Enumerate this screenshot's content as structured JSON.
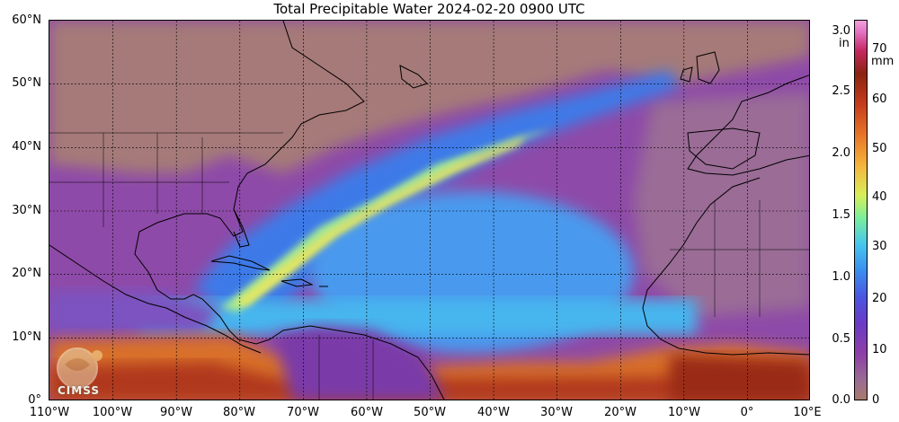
{
  "title": "Total Precipitable Water  2024-02-20 0900 UTC",
  "y_labels": [
    "60°N",
    "50°N",
    "40°N",
    "30°N",
    "20°N",
    "10°N",
    "0°"
  ],
  "x_labels": [
    "110°W",
    "100°W",
    "90°W",
    "80°W",
    "70°W",
    "60°W",
    "50°W",
    "40°W",
    "30°W",
    "20°W",
    "10°W",
    "0°",
    "10°E"
  ],
  "colorbar": {
    "inches": [
      "3.0",
      "2.5",
      "2.0",
      "1.5",
      "1.0",
      "0.5",
      "0.0"
    ],
    "inch_unit": "in",
    "mm": [
      "70",
      "60",
      "50",
      "40",
      "30",
      "20",
      "10",
      "0"
    ],
    "mm_unit": "mm"
  },
  "logo_text": "CIMSS",
  "colors": {
    "dry": "#a87a6c",
    "moderate": "#8e3fa8",
    "moist": "#3a8eee",
    "wet": "#d8ee5a",
    "very_wet": "#c43c1c"
  }
}
